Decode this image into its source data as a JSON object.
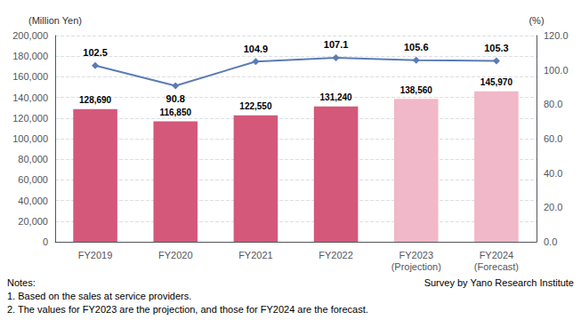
{
  "chart_data": {
    "type": "bar",
    "categories": [
      "FY2019",
      "FY2020",
      "FY2021",
      "FY2022",
      "FY2023\n(Projection)",
      "FY2024\n(Forecast)"
    ],
    "series": [
      {
        "type": "bar",
        "values": [
          128690,
          116850,
          122550,
          131240,
          138560,
          145970
        ],
        "value_labels": [
          "128,690",
          "116,850",
          "122,550",
          "131,240",
          "138,560",
          "145,970"
        ],
        "colors": [
          "#d4587a",
          "#d4587a",
          "#d4587a",
          "#d4587a",
          "#f0b8c8",
          "#f0b8c8"
        ],
        "data_labels": true
      },
      {
        "type": "line",
        "axis": "y2",
        "values": [
          102.5,
          90.8,
          104.9,
          107.1,
          105.6,
          105.3
        ],
        "color": "#5b7bb5",
        "marker": "diamond",
        "data_labels": true
      }
    ],
    "ylabel": "(Million Yen)",
    "y2label": "(%)",
    "ylim": [
      0,
      200000
    ],
    "yticks": [
      0,
      {
        "value": 20000,
        "label": "20,000"
      },
      {
        "value": 40000,
        "label": "40,000"
      },
      {
        "value": 60000,
        "label": "60,000"
      },
      {
        "value": 80000,
        "label": "80,000"
      },
      {
        "value": 100000,
        "label": "100,000"
      },
      {
        "value": 120000,
        "label": "120,000"
      },
      {
        "value": 140000,
        "label": "140,000"
      },
      {
        "value": 160000,
        "label": "160,000"
      },
      {
        "value": 180000,
        "label": "180,000"
      },
      {
        "value": 200000,
        "label": "200,000"
      }
    ],
    "y2lim": [
      0,
      120
    ],
    "y2ticks": [
      {
        "value": 0,
        "label": "0.0"
      },
      {
        "value": 20,
        "label": "20.0"
      },
      {
        "value": 40,
        "label": "40.0"
      },
      {
        "value": 60,
        "label": "60.0"
      },
      {
        "value": 80,
        "label": "80.0"
      },
      {
        "value": 100,
        "label": "100.0"
      },
      {
        "value": 120,
        "label": "120.0"
      }
    ],
    "grid": true,
    "annotations": [
      "Notes:",
      "1. Based on the sales at service providers.",
      "2. The values for FY2023 are the projection, and those for FY2024 are the forecast.",
      "Survey by Yano Research Institute"
    ]
  }
}
